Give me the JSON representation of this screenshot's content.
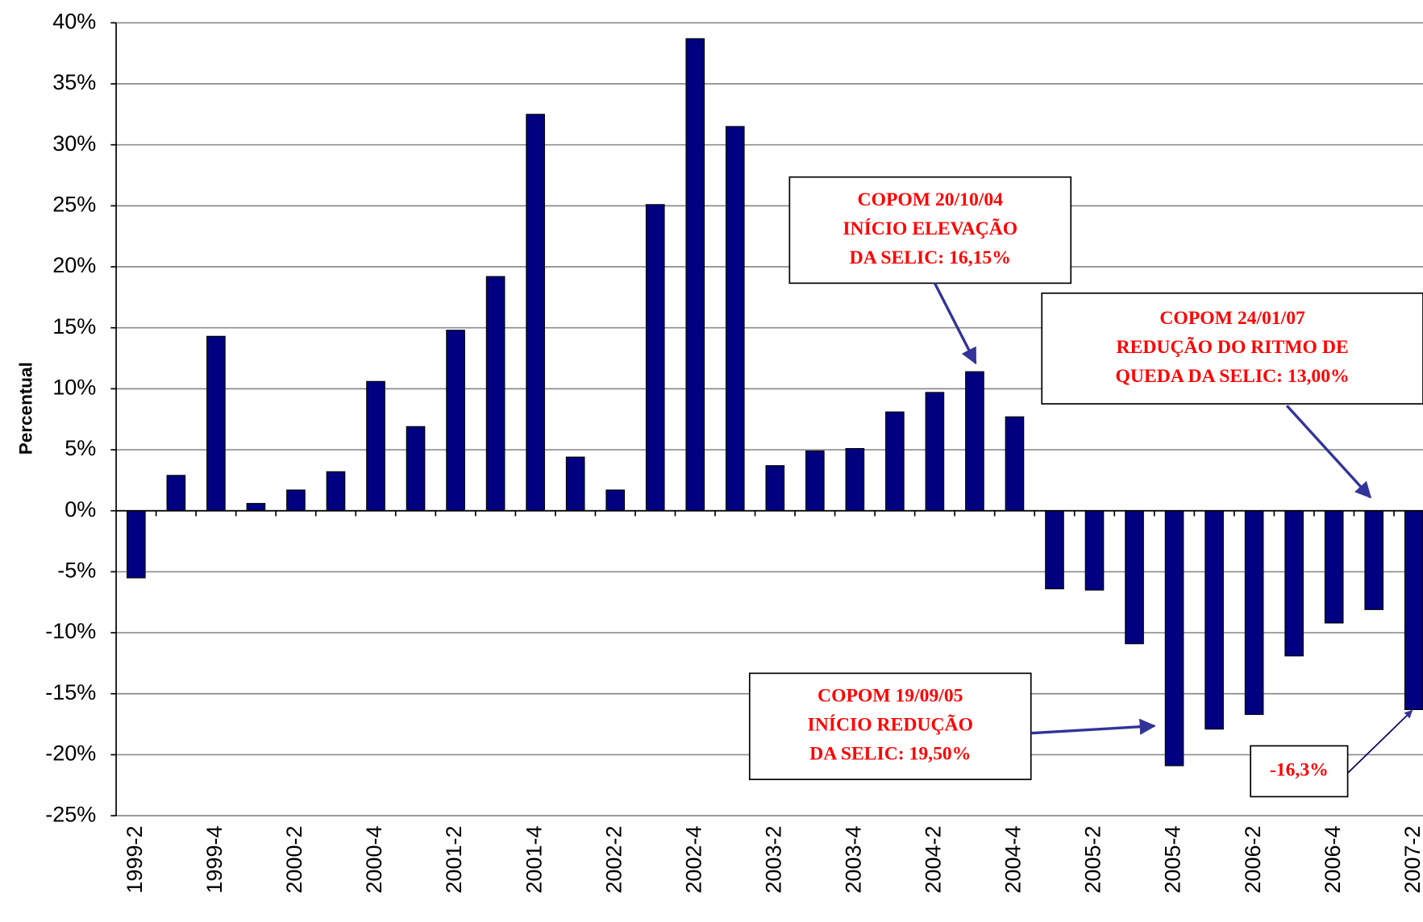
{
  "chart_data": {
    "type": "bar",
    "y_label": "Percentual",
    "categories": [
      "1999-2",
      null,
      "1999-4",
      null,
      "2000-2",
      null,
      "2000-4",
      null,
      "2001-2",
      null,
      "2001-4",
      null,
      "2002-2",
      null,
      "2002-4",
      null,
      "2003-2",
      null,
      "2003-4",
      null,
      "2004-2",
      null,
      "2004-4",
      null,
      "2005-2",
      null,
      "2005-4",
      null,
      "2006-2",
      null,
      "2006-4",
      null,
      "2007-2"
    ],
    "values": [
      -5.5,
      2.9,
      14.3,
      0.6,
      1.7,
      3.2,
      10.6,
      6.9,
      14.8,
      19.2,
      32.5,
      4.4,
      1.7,
      25.1,
      38.7,
      31.5,
      3.7,
      4.9,
      5.1,
      8.1,
      9.7,
      11.4,
      7.7,
      -6.4,
      -6.5,
      -10.9,
      -20.9,
      -17.9,
      -16.7,
      -11.9,
      -9.2,
      -8.1,
      -16.3
    ],
    "color": "#000080",
    "ylim": [
      -25,
      40
    ],
    "yticks": [
      {
        "value": -25,
        "label": "-25%"
      },
      {
        "value": -20,
        "label": "-20%"
      },
      {
        "value": -15,
        "label": "-15%"
      },
      {
        "value": -10,
        "label": "-10%"
      },
      {
        "value": -5,
        "label": "-5%"
      },
      {
        "value": 0,
        "label": "0%"
      },
      {
        "value": 5,
        "label": "5%"
      },
      {
        "value": 10,
        "label": "10%"
      },
      {
        "value": 15,
        "label": "15%"
      },
      {
        "value": 20,
        "label": "20%"
      },
      {
        "value": 25,
        "label": "25%"
      },
      {
        "value": 30,
        "label": "30%"
      },
      {
        "value": 35,
        "label": "35%"
      },
      {
        "value": 40,
        "label": "40%"
      }
    ],
    "grid": true,
    "annotations": [
      {
        "lines": [
          "COPOM 20/10/04",
          "INÍCIO ELEVAÇÃO",
          "DA SELIC: 16,15%"
        ]
      },
      {
        "lines": [
          "COPOM 24/01/07",
          "REDUÇÃO DO RITMO DE",
          "QUEDA DA SELIC: 13,00%"
        ]
      },
      {
        "lines": [
          "COPOM 19/09/05",
          "INÍCIO REDUÇÃO",
          "DA SELIC: 19,50%"
        ]
      },
      {
        "lines": [
          "-16,3%"
        ]
      }
    ]
  }
}
